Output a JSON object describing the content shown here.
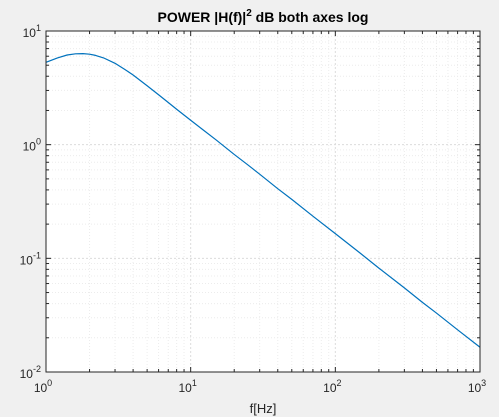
{
  "chart_data": {
    "type": "line",
    "title": "POWER |H(f)|",
    "title_superscript": "2",
    "title_suffix": " dB both axes log",
    "xlabel": "f[Hz]",
    "ylabel": "",
    "xscale": "log",
    "yscale": "log",
    "xlim": [
      1,
      1000
    ],
    "ylim": [
      0.01,
      10
    ],
    "grid": true,
    "minor_grid": true,
    "x_ticks": [
      {
        "value": 1,
        "base": "10",
        "exp": "0"
      },
      {
        "value": 10,
        "base": "10",
        "exp": "1"
      },
      {
        "value": 100,
        "base": "10",
        "exp": "2"
      },
      {
        "value": 1000,
        "base": "10",
        "exp": "3"
      }
    ],
    "y_ticks": [
      {
        "value": 0.01,
        "base": "10",
        "exp": "-2"
      },
      {
        "value": 0.1,
        "base": "10",
        "exp": "-1"
      },
      {
        "value": 1,
        "base": "10",
        "exp": "0"
      },
      {
        "value": 10,
        "base": "10",
        "exp": "1"
      }
    ],
    "series": [
      {
        "color": "#0072bd",
        "x": [
          1,
          1.2,
          1.4,
          1.6,
          1.8,
          2,
          2.2,
          2.5,
          3,
          3.5,
          4,
          5,
          6,
          7,
          8,
          10,
          12,
          15,
          20,
          25,
          30,
          40,
          50,
          70,
          100,
          150,
          200,
          300,
          400,
          500,
          700,
          1000
        ],
        "y": [
          5.3,
          5.8,
          6.15,
          6.3,
          6.32,
          6.25,
          6.1,
          5.8,
          5.2,
          4.6,
          4.1,
          3.3,
          2.75,
          2.35,
          2.05,
          1.64,
          1.37,
          1.1,
          0.82,
          0.66,
          0.55,
          0.41,
          0.33,
          0.235,
          0.165,
          0.11,
          0.082,
          0.055,
          0.041,
          0.033,
          0.0235,
          0.0165
        ]
      }
    ]
  }
}
